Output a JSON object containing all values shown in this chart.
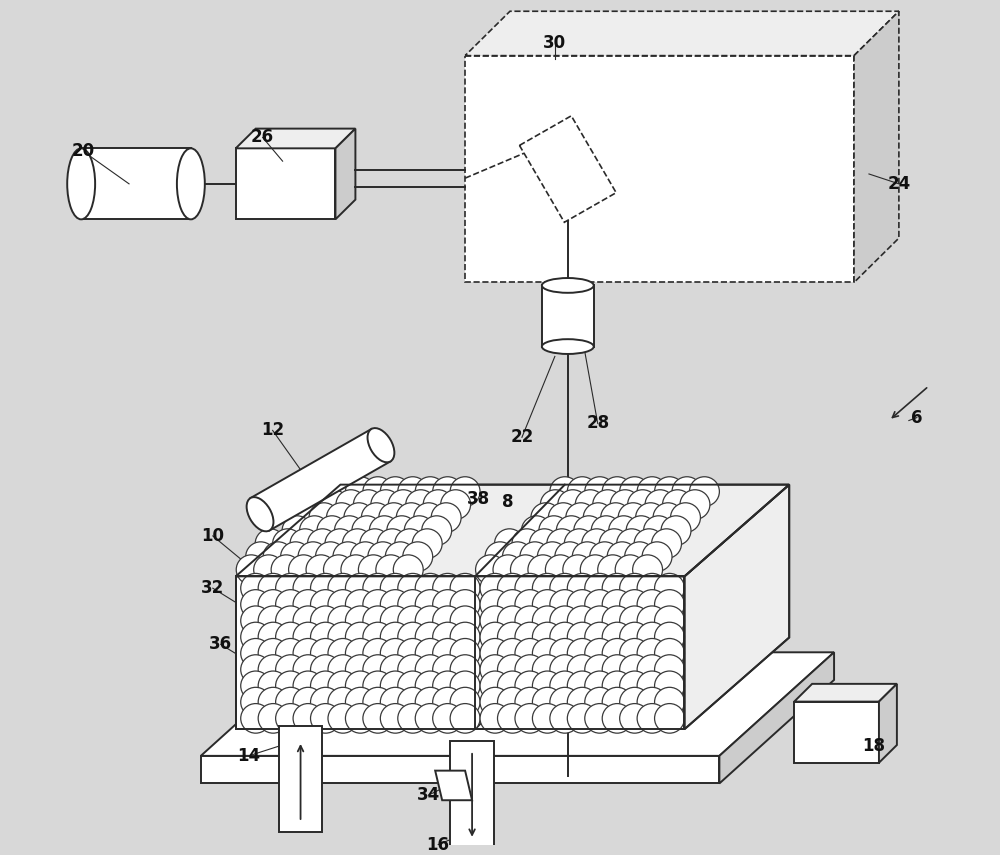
{
  "bg_color": "#d8d8d8",
  "line_color": "#2a2a2a",
  "label_color": "#111111",
  "label_fontsize": 12,
  "label_fontweight": "bold",
  "white": "#ffffff",
  "light_gray": "#eeeeee",
  "mid_gray": "#cccccc"
}
